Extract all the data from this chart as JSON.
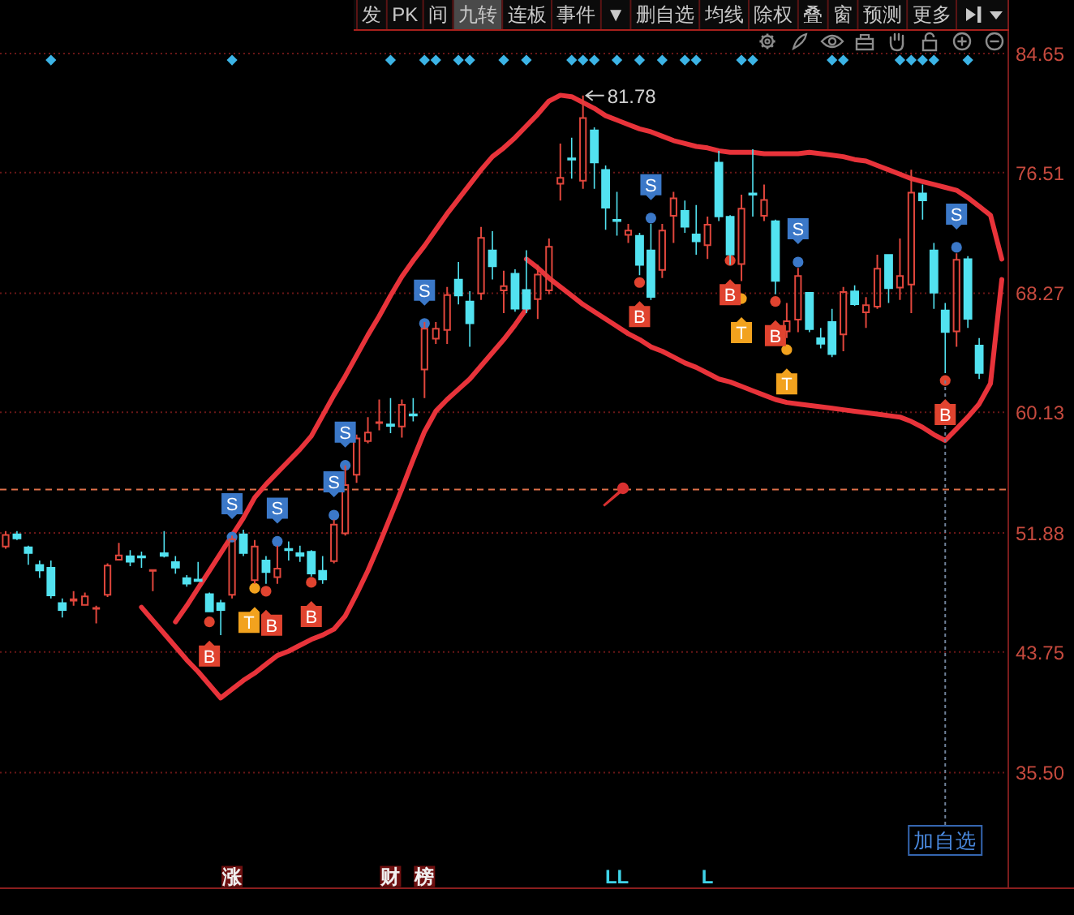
{
  "chart_data": {
    "type": "candlestick",
    "categories": [
      null,
      null,
      null,
      null,
      null,
      null,
      null,
      null,
      null,
      null,
      null,
      null,
      null,
      null,
      null,
      null,
      null,
      null,
      null,
      null,
      null,
      null,
      null,
      null,
      null,
      null,
      null,
      null,
      null,
      null,
      null,
      null,
      null,
      null,
      null,
      null,
      null,
      null,
      null,
      null,
      null,
      null,
      null,
      null,
      null,
      null,
      null,
      null,
      null,
      null,
      null,
      null,
      null,
      null,
      "LL",
      null,
      null,
      null,
      null,
      null,
      null,
      null,
      "L",
      null,
      null,
      null,
      null,
      null,
      null,
      null,
      null,
      null,
      null,
      null,
      null,
      null,
      null,
      null,
      null,
      null,
      null,
      null,
      null,
      null,
      null,
      null,
      null,
      null,
      null
    ],
    "ohlc": [
      [
        50.9,
        52.0,
        50.8,
        51.8
      ],
      [
        51.8,
        52.0,
        51.4,
        51.5
      ],
      [
        50.9,
        51.0,
        49.7,
        50.5
      ],
      [
        49.7,
        50.0,
        48.8,
        49.3
      ],
      [
        49.5,
        50.0,
        47.4,
        47.6
      ],
      [
        47.1,
        47.4,
        46.1,
        46.6
      ],
      [
        47.2,
        47.9,
        46.9,
        47.4
      ],
      [
        46.9,
        47.8,
        46.9,
        47.6
      ],
      [
        46.7,
        46.9,
        45.7,
        46.8
      ],
      [
        47.6,
        49.8,
        47.5,
        49.7
      ],
      [
        50.0,
        51.2,
        50.0,
        50.4
      ],
      [
        50.3,
        50.7,
        49.6,
        49.9
      ],
      [
        50.3,
        50.6,
        49.5,
        50.2
      ],
      [
        49.3,
        49.4,
        47.9,
        49.4
      ],
      [
        50.5,
        52.0,
        50.2,
        50.3
      ],
      [
        49.9,
        50.3,
        49.1,
        49.5
      ],
      [
        48.8,
        49.0,
        48.2,
        48.4
      ],
      [
        48.7,
        49.9,
        48.6,
        48.6
      ],
      [
        47.7,
        47.8,
        46.5,
        46.5
      ],
      [
        47.1,
        47.3,
        44.9,
        46.6
      ],
      [
        47.6,
        51.7,
        47.4,
        51.5
      ],
      [
        51.8,
        52.1,
        50.3,
        50.5
      ],
      [
        48.6,
        51.4,
        48.4,
        51.0
      ],
      [
        50.0,
        50.3,
        48.4,
        49.2
      ],
      [
        48.8,
        51.0,
        48.4,
        49.5
      ],
      [
        50.8,
        51.3,
        50.0,
        50.7
      ],
      [
        50.5,
        51.0,
        49.9,
        50.3
      ],
      [
        50.6,
        50.7,
        48.9,
        49.1
      ],
      [
        49.3,
        50.3,
        48.4,
        48.7
      ],
      [
        49.9,
        52.8,
        49.8,
        52.5
      ],
      [
        51.8,
        56.5,
        51.7,
        55.2
      ],
      [
        55.8,
        58.6,
        55.3,
        58.4
      ],
      [
        58.1,
        59.8,
        58.0,
        58.8
      ],
      [
        59.4,
        61.0,
        58.9,
        59.5
      ],
      [
        59.3,
        61.1,
        58.7,
        59.2
      ],
      [
        59.1,
        61.0,
        58.4,
        60.7
      ],
      [
        60.0,
        61.1,
        59.5,
        59.9
      ],
      [
        63.0,
        66.3,
        61.1,
        65.9
      ],
      [
        65.1,
        66.3,
        64.8,
        65.9
      ],
      [
        65.7,
        68.7,
        64.8,
        68.2
      ],
      [
        69.2,
        70.4,
        67.5,
        68.1
      ],
      [
        67.7,
        68.4,
        64.6,
        66.2
      ],
      [
        68.2,
        72.8,
        67.8,
        72.1
      ],
      [
        71.2,
        72.5,
        69.2,
        70.1
      ],
      [
        68.4,
        69.8,
        66.9,
        68.8
      ],
      [
        69.6,
        69.9,
        67.0,
        67.2
      ],
      [
        68.5,
        71.2,
        66.9,
        67.2
      ],
      [
        67.8,
        70.2,
        66.5,
        69.6
      ],
      [
        68.4,
        72.0,
        68.2,
        71.5
      ],
      [
        75.7,
        78.5,
        74.6,
        76.2
      ],
      [
        77.5,
        78.9,
        76.1,
        77.4
      ],
      [
        75.9,
        81.78,
        75.4,
        80.3
      ],
      [
        79.4,
        79.6,
        75.4,
        77.2
      ],
      [
        76.7,
        77.0,
        72.6,
        74.1
      ],
      [
        73.3,
        75.2,
        72.2,
        73.2
      ],
      [
        72.2,
        73.0,
        71.7,
        72.6
      ],
      [
        72.2,
        72.4,
        69.5,
        70.2
      ],
      [
        71.2,
        73.0,
        67.8,
        68.0
      ],
      [
        69.8,
        73.0,
        69.3,
        72.6
      ],
      [
        73.5,
        75.2,
        71.7,
        74.8
      ],
      [
        73.9,
        74.6,
        72.4,
        72.8
      ],
      [
        72.3,
        74.3,
        70.9,
        71.8
      ],
      [
        71.5,
        73.5,
        70.6,
        73.0
      ],
      [
        77.2,
        78.0,
        73.2,
        73.5
      ],
      [
        73.5,
        73.6,
        70.2,
        70.9
      ],
      [
        70.2,
        75.0,
        69.1,
        74.1
      ],
      [
        75.1,
        78.1,
        73.5,
        75.0
      ],
      [
        73.5,
        75.7,
        73.2,
        74.7
      ],
      [
        73.2,
        73.3,
        68.2,
        69.1
      ],
      [
        65.6,
        67.6,
        65.2,
        66.4
      ],
      [
        66.4,
        70.0,
        65.6,
        69.5
      ],
      [
        68.3,
        68.3,
        65.6,
        65.8
      ],
      [
        65.2,
        65.9,
        64.5,
        64.8
      ],
      [
        66.3,
        67.2,
        63.9,
        64.1
      ],
      [
        65.4,
        68.7,
        64.3,
        68.4
      ],
      [
        68.4,
        68.8,
        67.4,
        67.5
      ],
      [
        66.9,
        68.0,
        65.9,
        67.5
      ],
      [
        67.3,
        70.9,
        67.2,
        70.0
      ],
      [
        70.9,
        70.9,
        67.6,
        68.6
      ],
      [
        68.6,
        72.0,
        67.8,
        69.5
      ],
      [
        68.8,
        76.7,
        66.9,
        75.2
      ],
      [
        75.1,
        75.7,
        73.3,
        74.6
      ],
      [
        71.2,
        71.7,
        67.2,
        68.3
      ],
      [
        67.1,
        67.6,
        62.8,
        65.6
      ],
      [
        65.6,
        71.0,
        64.6,
        70.6
      ],
      [
        70.6,
        70.8,
        65.9,
        66.5
      ],
      [
        64.7,
        65.2,
        62.4,
        62.8
      ],
      null,
      null
    ],
    "colors": [
      "#e0463c",
      "#52e2f0",
      "#52e2f0",
      "#52e2f0",
      "#52e2f0",
      "#52e2f0",
      "#e0463c",
      "#e0463c",
      "#e0463c",
      "#e0463c",
      "#e0463c",
      "#52e2f0",
      "#52e2f0",
      "#e0463c",
      "#52e2f0",
      "#52e2f0",
      "#52e2f0",
      "#52e2f0",
      "#52e2f0",
      "#52e2f0",
      "#e0463c",
      "#52e2f0",
      "#e0463c",
      "#52e2f0",
      "#e0463c",
      "#52e2f0",
      "#52e2f0",
      "#52e2f0",
      "#52e2f0",
      "#e0463c",
      "#e0463c",
      "#e0463c",
      "#e0463c",
      "#e0463c",
      "#52e2f0",
      "#e0463c",
      "#52e2f0",
      "#e0463c",
      "#e0463c",
      "#e0463c",
      "#52e2f0",
      "#52e2f0",
      "#e0463c",
      "#52e2f0",
      "#e0463c",
      "#52e2f0",
      "#52e2f0",
      "#e0463c",
      "#e0463c",
      "#e0463c",
      "#52e2f0",
      "#e0463c",
      "#52e2f0",
      "#52e2f0",
      "#52e2f0",
      "#e0463c",
      "#52e2f0",
      "#52e2f0",
      "#e0463c",
      "#e0463c",
      "#52e2f0",
      "#52e2f0",
      "#e0463c",
      "#52e2f0",
      "#52e2f0",
      "#e0463c",
      "#52e2f0",
      "#e0463c",
      "#52e2f0",
      "#e0463c",
      "#e0463c",
      "#52e2f0",
      "#52e2f0",
      "#52e2f0",
      "#e0463c",
      "#52e2f0",
      "#e0463c",
      "#e0463c",
      "#52e2f0",
      "#e0463c",
      "#e0463c",
      "#52e2f0",
      "#52e2f0",
      "#52e2f0",
      "#e0463c",
      "#52e2f0",
      "#52e2f0",
      null,
      null
    ],
    "series": [
      {
        "type": "line",
        "color": "#e8333a",
        "values": [
          null,
          null,
          null,
          null,
          null,
          null,
          null,
          null,
          null,
          null,
          null,
          null,
          null,
          null,
          null,
          45.8,
          46.9,
          48.1,
          49.3,
          50.5,
          51.7,
          52.9,
          54.3,
          55.2,
          56.0,
          56.8,
          57.6,
          58.5,
          59.9,
          61.3,
          62.6,
          64.0,
          65.4,
          66.7,
          68.1,
          69.4,
          70.5,
          71.5,
          72.6,
          73.7,
          74.7,
          75.7,
          76.7,
          77.6,
          78.2,
          78.9,
          79.7,
          80.5,
          81.4,
          81.8,
          81.7,
          81.3,
          80.9,
          80.4,
          80.1,
          79.8,
          79.5,
          79.3,
          79.0,
          78.7,
          78.5,
          78.3,
          78.2,
          78.0,
          77.9,
          77.9,
          77.9,
          77.8,
          77.8,
          77.8,
          77.8,
          77.9,
          77.8,
          77.7,
          77.6,
          77.4,
          77.3,
          77.0,
          76.7,
          76.4,
          76.1,
          75.9,
          75.7,
          75.5,
          75.3,
          74.8,
          74.2,
          73.6,
          70.6
        ]
      },
      {
        "type": "line",
        "color": "#e8333a",
        "values": [
          null,
          null,
          null,
          null,
          null,
          null,
          null,
          null,
          null,
          null,
          null,
          null,
          null,
          null,
          null,
          null,
          null,
          null,
          null,
          null,
          null,
          null,
          null,
          null,
          null,
          null,
          null,
          null,
          null,
          null,
          null,
          null,
          null,
          null,
          null,
          null,
          null,
          null,
          null,
          null,
          null,
          null,
          null,
          null,
          null,
          null,
          70.6,
          70.0,
          69.3,
          68.7,
          68.1,
          67.5,
          67.0,
          66.5,
          66.0,
          65.5,
          65.1,
          64.6,
          64.3,
          63.9,
          63.5,
          63.2,
          62.8,
          62.4,
          62.2,
          61.9,
          61.6,
          61.3,
          61.0,
          60.8,
          60.7,
          60.6,
          60.5,
          60.4,
          60.3,
          60.2,
          60.1,
          60.0,
          59.9,
          59.8,
          59.5,
          59.1,
          58.6,
          58.2,
          59.0,
          59.8,
          60.7,
          62.1,
          69.2
        ]
      },
      {
        "type": "line",
        "color": "#e8333a",
        "values": [
          null,
          null,
          null,
          null,
          null,
          null,
          null,
          null,
          null,
          null,
          null,
          null,
          46.8,
          45.9,
          45.0,
          44.1,
          43.2,
          42.4,
          41.5,
          40.6,
          41.2,
          41.8,
          42.3,
          42.9,
          43.5,
          43.8,
          44.2,
          44.6,
          44.9,
          45.3,
          46.2,
          47.7,
          49.3,
          51.1,
          53.0,
          54.9,
          56.9,
          58.8,
          60.2,
          61.0,
          61.7,
          62.4,
          63.3,
          64.2,
          65.1,
          66.1,
          67.2,
          null,
          null,
          null,
          null,
          null,
          null,
          null,
          null,
          null,
          null,
          null,
          null,
          null,
          null,
          null,
          null,
          null,
          null,
          null,
          null,
          null,
          null,
          null,
          null,
          null,
          null,
          null,
          null,
          null,
          null,
          null,
          null,
          null,
          null,
          null,
          null,
          null,
          null,
          null,
          null,
          null,
          null
        ]
      },
      {
        "type": "scatter",
        "marker": "diamond",
        "color": "#3cb4e6",
        "values": [
          null,
          null,
          null,
          null,
          84.2,
          null,
          null,
          null,
          null,
          null,
          null,
          null,
          null,
          null,
          null,
          null,
          null,
          null,
          null,
          null,
          84.2,
          null,
          null,
          null,
          null,
          null,
          null,
          null,
          null,
          null,
          null,
          null,
          null,
          null,
          84.2,
          null,
          null,
          84.2,
          84.2,
          null,
          84.2,
          84.2,
          null,
          null,
          84.2,
          null,
          84.2,
          null,
          null,
          null,
          84.2,
          84.2,
          84.2,
          null,
          84.2,
          null,
          84.2,
          null,
          84.2,
          null,
          84.2,
          84.2,
          null,
          null,
          null,
          84.2,
          84.2,
          null,
          null,
          null,
          null,
          null,
          null,
          84.2,
          84.2,
          null,
          null,
          null,
          null,
          84.2,
          84.2,
          84.2,
          84.2,
          null,
          null,
          84.2,
          null,
          null,
          null
        ]
      },
      {
        "type": "scatter",
        "marker": "circle",
        "color": "#3b78c8",
        "values": [
          null,
          null,
          null,
          null,
          null,
          null,
          null,
          null,
          null,
          null,
          null,
          null,
          null,
          null,
          null,
          null,
          null,
          null,
          null,
          null,
          51.6,
          null,
          null,
          null,
          51.3,
          null,
          null,
          null,
          null,
          53.1,
          56.5,
          null,
          null,
          null,
          null,
          null,
          null,
          66.2,
          null,
          null,
          null,
          null,
          null,
          null,
          null,
          null,
          null,
          null,
          null,
          null,
          null,
          null,
          null,
          null,
          null,
          null,
          null,
          73.4,
          null,
          null,
          null,
          null,
          null,
          null,
          null,
          null,
          null,
          null,
          null,
          null,
          70.4,
          null,
          null,
          null,
          null,
          null,
          null,
          null,
          null,
          null,
          null,
          null,
          null,
          null,
          71.4,
          null,
          null,
          null,
          null
        ],
        "value_labels": [
          null,
          null,
          null,
          null,
          null,
          null,
          null,
          null,
          null,
          null,
          null,
          null,
          null,
          null,
          null,
          null,
          null,
          null,
          null,
          null,
          "S",
          null,
          null,
          null,
          "S",
          null,
          null,
          null,
          null,
          "S",
          "S",
          null,
          null,
          null,
          null,
          null,
          null,
          "S",
          null,
          null,
          null,
          null,
          null,
          null,
          null,
          null,
          null,
          null,
          null,
          null,
          null,
          null,
          null,
          null,
          null,
          null,
          null,
          "S",
          null,
          null,
          null,
          null,
          null,
          null,
          null,
          null,
          null,
          null,
          null,
          null,
          "S",
          null,
          null,
          null,
          null,
          null,
          null,
          null,
          null,
          null,
          null,
          null,
          null,
          null,
          "S",
          null,
          null,
          null,
          null
        ]
      },
      {
        "type": "scatter",
        "marker": "circle",
        "color": "#f2a21e",
        "values": [
          null,
          null,
          null,
          null,
          null,
          null,
          null,
          null,
          null,
          null,
          null,
          null,
          null,
          null,
          null,
          null,
          null,
          null,
          null,
          null,
          null,
          null,
          48.1,
          null,
          null,
          null,
          null,
          null,
          null,
          null,
          null,
          null,
          null,
          null,
          null,
          null,
          null,
          null,
          null,
          null,
          null,
          null,
          null,
          null,
          null,
          null,
          null,
          null,
          null,
          null,
          null,
          null,
          null,
          null,
          null,
          null,
          null,
          null,
          null,
          null,
          null,
          null,
          null,
          null,
          null,
          67.9,
          null,
          null,
          null,
          64.4,
          null,
          null,
          null,
          null,
          null,
          null,
          null,
          null,
          null,
          null,
          null,
          null,
          null,
          null,
          null,
          null,
          null,
          null,
          null
        ],
        "value_labels": [
          null,
          null,
          null,
          null,
          null,
          null,
          null,
          null,
          null,
          null,
          null,
          null,
          null,
          null,
          null,
          null,
          null,
          null,
          null,
          null,
          null,
          null,
          "T",
          null,
          null,
          null,
          null,
          null,
          null,
          null,
          null,
          null,
          null,
          null,
          null,
          null,
          null,
          null,
          null,
          null,
          null,
          null,
          null,
          null,
          null,
          null,
          null,
          null,
          null,
          null,
          null,
          null,
          null,
          null,
          null,
          null,
          null,
          null,
          null,
          null,
          null,
          null,
          null,
          null,
          null,
          "T",
          null,
          null,
          null,
          "T",
          null,
          null,
          null,
          null,
          null,
          null,
          null,
          null,
          null,
          null,
          null,
          null,
          null,
          null,
          null,
          null,
          null,
          null,
          null
        ]
      },
      {
        "type": "scatter",
        "marker": "circle",
        "color": "#e0432f",
        "values": [
          null,
          null,
          null,
          null,
          null,
          null,
          null,
          null,
          null,
          null,
          null,
          null,
          null,
          null,
          null,
          null,
          null,
          null,
          45.8,
          null,
          null,
          null,
          null,
          47.9,
          null,
          null,
          null,
          48.5,
          null,
          null,
          null,
          null,
          null,
          null,
          null,
          null,
          null,
          null,
          null,
          null,
          null,
          null,
          null,
          null,
          null,
          null,
          null,
          null,
          null,
          null,
          null,
          null,
          null,
          null,
          null,
          null,
          69.0,
          null,
          null,
          null,
          null,
          null,
          null,
          null,
          70.5,
          null,
          null,
          null,
          67.7,
          null,
          null,
          null,
          null,
          null,
          null,
          null,
          null,
          null,
          null,
          null,
          null,
          null,
          null,
          62.3,
          null,
          null,
          null,
          null,
          null
        ],
        "value_labels": [
          null,
          null,
          null,
          null,
          null,
          null,
          null,
          null,
          null,
          null,
          null,
          null,
          null,
          null,
          null,
          null,
          null,
          null,
          "B",
          null,
          null,
          null,
          null,
          "B",
          null,
          null,
          null,
          "B",
          null,
          null,
          null,
          null,
          null,
          null,
          null,
          null,
          null,
          null,
          null,
          null,
          null,
          null,
          null,
          null,
          null,
          null,
          null,
          null,
          null,
          null,
          null,
          null,
          null,
          null,
          null,
          null,
          "B",
          null,
          null,
          null,
          null,
          null,
          null,
          null,
          "B",
          null,
          null,
          null,
          "B",
          null,
          null,
          null,
          null,
          null,
          null,
          null,
          null,
          null,
          null,
          null,
          null,
          null,
          null,
          "B",
          null,
          null,
          null,
          null,
          null
        ]
      },
      {
        "type": "scatter",
        "marker": "square",
        "color": "#6e1010",
        "values": [
          null,
          null,
          null,
          null,
          null,
          null,
          null,
          null,
          null,
          null,
          null,
          null,
          null,
          null,
          null,
          null,
          null,
          null,
          null,
          null,
          28.4,
          null,
          null,
          null,
          null,
          null,
          null,
          null,
          null,
          null,
          null,
          null,
          null,
          null,
          28.4,
          null,
          null,
          28.4,
          null,
          null,
          null,
          null,
          null,
          null,
          null,
          null,
          null,
          null,
          null,
          null,
          null,
          null,
          null,
          null,
          null,
          null,
          null,
          null,
          null,
          null,
          null,
          null,
          null,
          null,
          null,
          null,
          null,
          null,
          null,
          null,
          null,
          null,
          null,
          null,
          null,
          null,
          null,
          null,
          null,
          null,
          null,
          null,
          null,
          null,
          null,
          null,
          null,
          null,
          null
        ],
        "value_labels": [
          null,
          null,
          null,
          null,
          null,
          null,
          null,
          null,
          null,
          null,
          null,
          null,
          null,
          null,
          null,
          null,
          null,
          null,
          null,
          null,
          "涨",
          null,
          null,
          null,
          null,
          null,
          null,
          null,
          null,
          null,
          null,
          null,
          null,
          null,
          "财",
          null,
          null,
          "榜",
          null,
          null,
          null,
          null,
          null,
          null,
          null,
          null,
          null,
          null,
          null,
          null,
          null,
          null,
          null,
          null,
          null,
          null,
          null,
          null,
          null,
          null,
          null,
          null,
          null,
          null,
          null,
          null,
          null,
          null,
          null,
          null,
          null,
          null,
          null,
          null,
          null,
          null,
          null,
          null,
          null,
          null,
          null,
          null,
          null,
          null,
          null,
          null,
          null,
          null,
          null
        ]
      }
    ],
    "ylim": [
      27.65,
      86.09
    ],
    "yticks": [
      84.65,
      76.51,
      68.27,
      60.13,
      51.88,
      43.75,
      {
        "value": 35.5,
        "label": "35.50"
      }
    ],
    "grid": "y",
    "ref_lines": [
      {
        "axis": "y",
        "value": 54.85,
        "color": "#e0704a",
        "line_style": "dashed"
      }
    ],
    "annotations": [
      "发 PK 间 九转 连板 事件 ▼ 删自选 均线 除权 叠 窗 预测 更多",
      "81.78",
      {
        "text": "加自选",
        "y": 62.3
      }
    ]
  }
}
